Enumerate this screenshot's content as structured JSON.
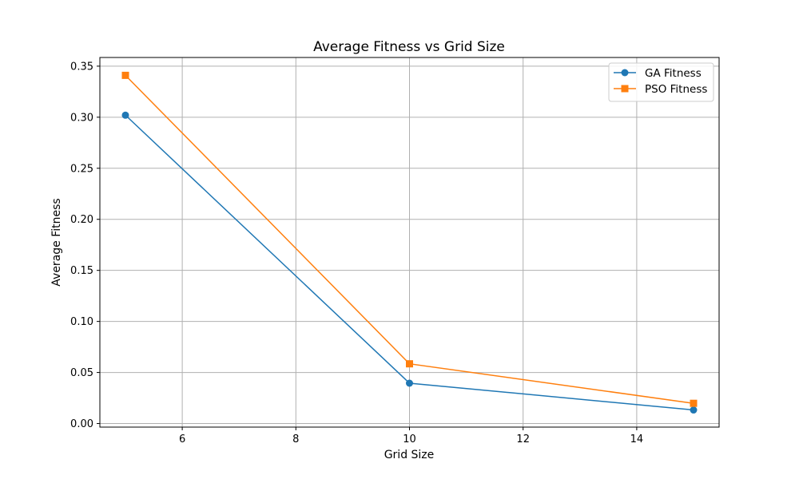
{
  "chart_data": {
    "type": "line",
    "title": "Average Fitness vs Grid Size",
    "xlabel": "Grid Size",
    "ylabel": "Average Fitness",
    "x": [
      5,
      10,
      15
    ],
    "xlim": [
      4.55,
      15.45
    ],
    "ylim": [
      -0.0035,
      0.3585
    ],
    "xticks": [
      6,
      8,
      10,
      12,
      14
    ],
    "yticks": [
      0.0,
      0.05,
      0.1,
      0.15,
      0.2,
      0.25,
      0.3,
      0.35
    ],
    "grid": true,
    "legend_position": "top-right",
    "series": [
      {
        "name": "GA Fitness",
        "values": [
          0.302,
          0.0395,
          0.0133
        ],
        "color": "#1f77b4",
        "marker": "circle"
      },
      {
        "name": "PSO Fitness",
        "values": [
          0.341,
          0.0585,
          0.0198
        ],
        "color": "#ff7f0e",
        "marker": "square"
      }
    ]
  }
}
